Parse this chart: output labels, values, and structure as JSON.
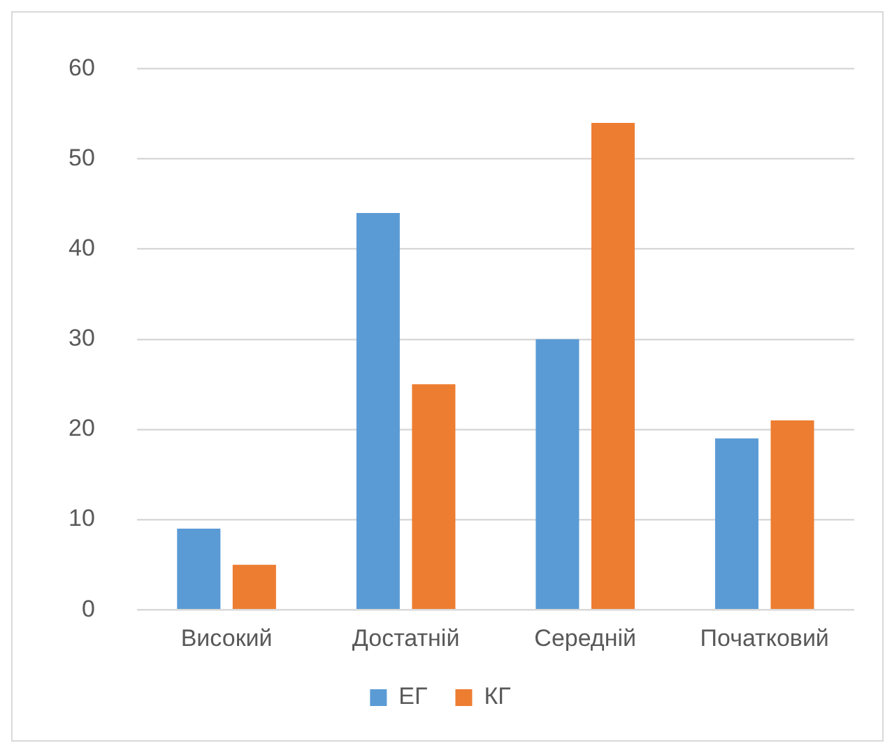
{
  "chart_data": {
    "type": "bar",
    "categories": [
      "Високий",
      "Достатній",
      "Середній",
      "Початковий"
    ],
    "series": [
      {
        "name": "ЕГ",
        "color": "#5b9bd5",
        "values": [
          9,
          44,
          30,
          19
        ]
      },
      {
        "name": "КГ",
        "color": "#ed7d31",
        "values": [
          5,
          25,
          54,
          21
        ]
      }
    ],
    "ylim": [
      0,
      60
    ],
    "yticks": [
      0,
      10,
      20,
      30,
      40,
      50,
      60
    ],
    "grid": "y",
    "legend": "bottom"
  }
}
